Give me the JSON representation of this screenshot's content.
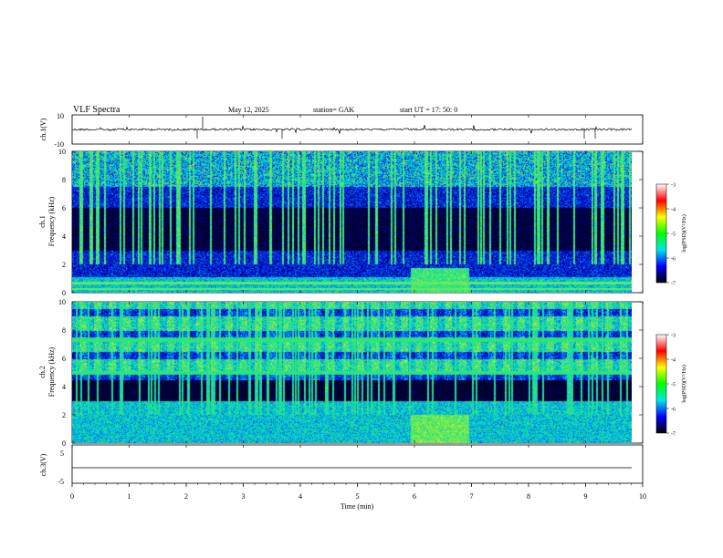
{
  "header": {
    "title": "VLF  Spectra",
    "date": "May 12, 2025",
    "station": "station= GAK",
    "start": "start  UT  =    17: 50: 0"
  },
  "panels": {
    "ch1v": {
      "ylabel": "ch.1(V)",
      "ticks": [
        "10",
        "-10"
      ]
    },
    "spec1": {
      "ylabel_top": "ch.1",
      "ylabel": "Frequency  (kHz)",
      "ticks": [
        "0",
        "2",
        "4",
        "6",
        "8",
        "10"
      ]
    },
    "spec2": {
      "ylabel_top": "ch.2",
      "ylabel": "Frequency  (kHz)",
      "ticks": [
        "0",
        "2",
        "4",
        "6",
        "8",
        "10"
      ]
    },
    "ch3v": {
      "ylabel": "ch.3(V)",
      "ticks": [
        "5",
        "-5"
      ]
    }
  },
  "xaxis": {
    "label": "Time  (min)",
    "ticks": [
      "0",
      "1",
      "2",
      "3",
      "4",
      "5",
      "6",
      "7",
      "8",
      "9",
      "10"
    ]
  },
  "colorbar": {
    "label": "log(PSD)(V²/Hz)",
    "ticks": [
      "-3",
      "-4",
      "-5",
      "-6",
      "-7"
    ],
    "colors": [
      "#000000",
      "#0000ff",
      "#00e6e6",
      "#00ff00",
      "#ffff00",
      "#ff0000",
      "#ffffff"
    ]
  },
  "chart_data": [
    {
      "type": "line",
      "title": "",
      "ylabel": "ch.1(V)",
      "xlabel": "",
      "xlim": [
        0,
        10
      ],
      "ylim": [
        -10,
        10
      ],
      "series": [
        {
          "values_description": "",
          "baseline": 0
        }
      ]
    },
    {
      "type": "heatmap",
      "ylabel": "Frequency  (kHz)",
      "xlim": [
        0,
        10
      ],
      "ylim": [
        0,
        10
      ],
      "colorbar_range": [
        -7,
        -3
      ]
    },
    {
      "type": "heatmap",
      "ylabel": "Frequency  (kHz)",
      "xlim": [
        0,
        10
      ],
      "ylim": [
        0,
        10
      ],
      "colorbar_range": [
        -7,
        -3
      ]
    },
    {
      "type": "line",
      "ylabel": "ch.3(V)",
      "xlabel": "Time  (min)",
      "xlim": [
        0,
        10
      ],
      "ylim": [
        -5,
        5
      ],
      "series": [
        {
          "baseline": 0
        }
      ]
    }
  ]
}
